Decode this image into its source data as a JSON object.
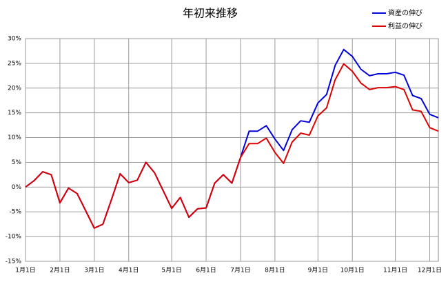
{
  "chart_data": {
    "type": "line",
    "title": "年初来推移",
    "categories": [
      "1月1日",
      null,
      null,
      null,
      "2月1日",
      null,
      null,
      null,
      "3月1日",
      null,
      null,
      null,
      "4月1日",
      null,
      null,
      null,
      null,
      "5月1日",
      null,
      null,
      null,
      "6月1日",
      null,
      null,
      null,
      "7月1日",
      null,
      null,
      null,
      "8月1日",
      null,
      null,
      null,
      null,
      "9月1日",
      null,
      null,
      null,
      "10月1日",
      null,
      null,
      null,
      null,
      "11月1日",
      null,
      null,
      null,
      "12月1日",
      null
    ],
    "series": [
      {
        "name": "資産の伸び",
        "color": "#0000dd",
        "values": [
          0,
          1.3,
          3.1,
          2.5,
          -3.2,
          -0.2,
          -1.3,
          -4.8,
          -8.3,
          -7.5,
          -2.5,
          2.7,
          0.9,
          1.4,
          5.0,
          2.9,
          -0.7,
          -4.3,
          -2.1,
          -6.1,
          -4.4,
          -4.2,
          0.8,
          2.5,
          0.8,
          6.0,
          11.3,
          11.3,
          12.4,
          9.7,
          7.4,
          11.6,
          13.4,
          13.1,
          17.0,
          18.7,
          24.6,
          27.8,
          26.4,
          23.8,
          22.5,
          22.9,
          22.9,
          23.2,
          22.6,
          18.5,
          17.9,
          14.7,
          14.0
        ]
      },
      {
        "name": "利益の伸び",
        "color": "#dd0000",
        "values": [
          0,
          1.3,
          3.1,
          2.5,
          -3.2,
          -0.2,
          -1.3,
          -4.8,
          -8.3,
          -7.5,
          -2.5,
          2.7,
          0.9,
          1.4,
          5.0,
          2.9,
          -0.7,
          -4.3,
          -2.1,
          -6.1,
          -4.4,
          -4.2,
          0.8,
          2.5,
          0.8,
          6.0,
          8.8,
          8.8,
          9.9,
          7.0,
          4.8,
          9.1,
          10.9,
          10.5,
          14.4,
          16.0,
          21.7,
          24.9,
          23.4,
          21.0,
          19.7,
          20.1,
          20.1,
          20.3,
          19.7,
          15.6,
          15.3,
          12.0,
          11.3
        ]
      }
    ],
    "ylim": [
      -15,
      30
    ],
    "yticks": [
      {
        "value": -15,
        "label": "-15%"
      },
      {
        "value": -10,
        "label": "-10%"
      },
      {
        "value": -5,
        "label": "-5%"
      },
      {
        "value": 0,
        "label": "0%"
      },
      {
        "value": 5,
        "label": "5%"
      },
      {
        "value": 10,
        "label": "10%"
      },
      {
        "value": 15,
        "label": "15%"
      },
      {
        "value": 20,
        "label": "20%"
      },
      {
        "value": 25,
        "label": "25%"
      },
      {
        "value": 30,
        "label": "30%"
      }
    ],
    "grid": true,
    "legend": "top-right"
  }
}
